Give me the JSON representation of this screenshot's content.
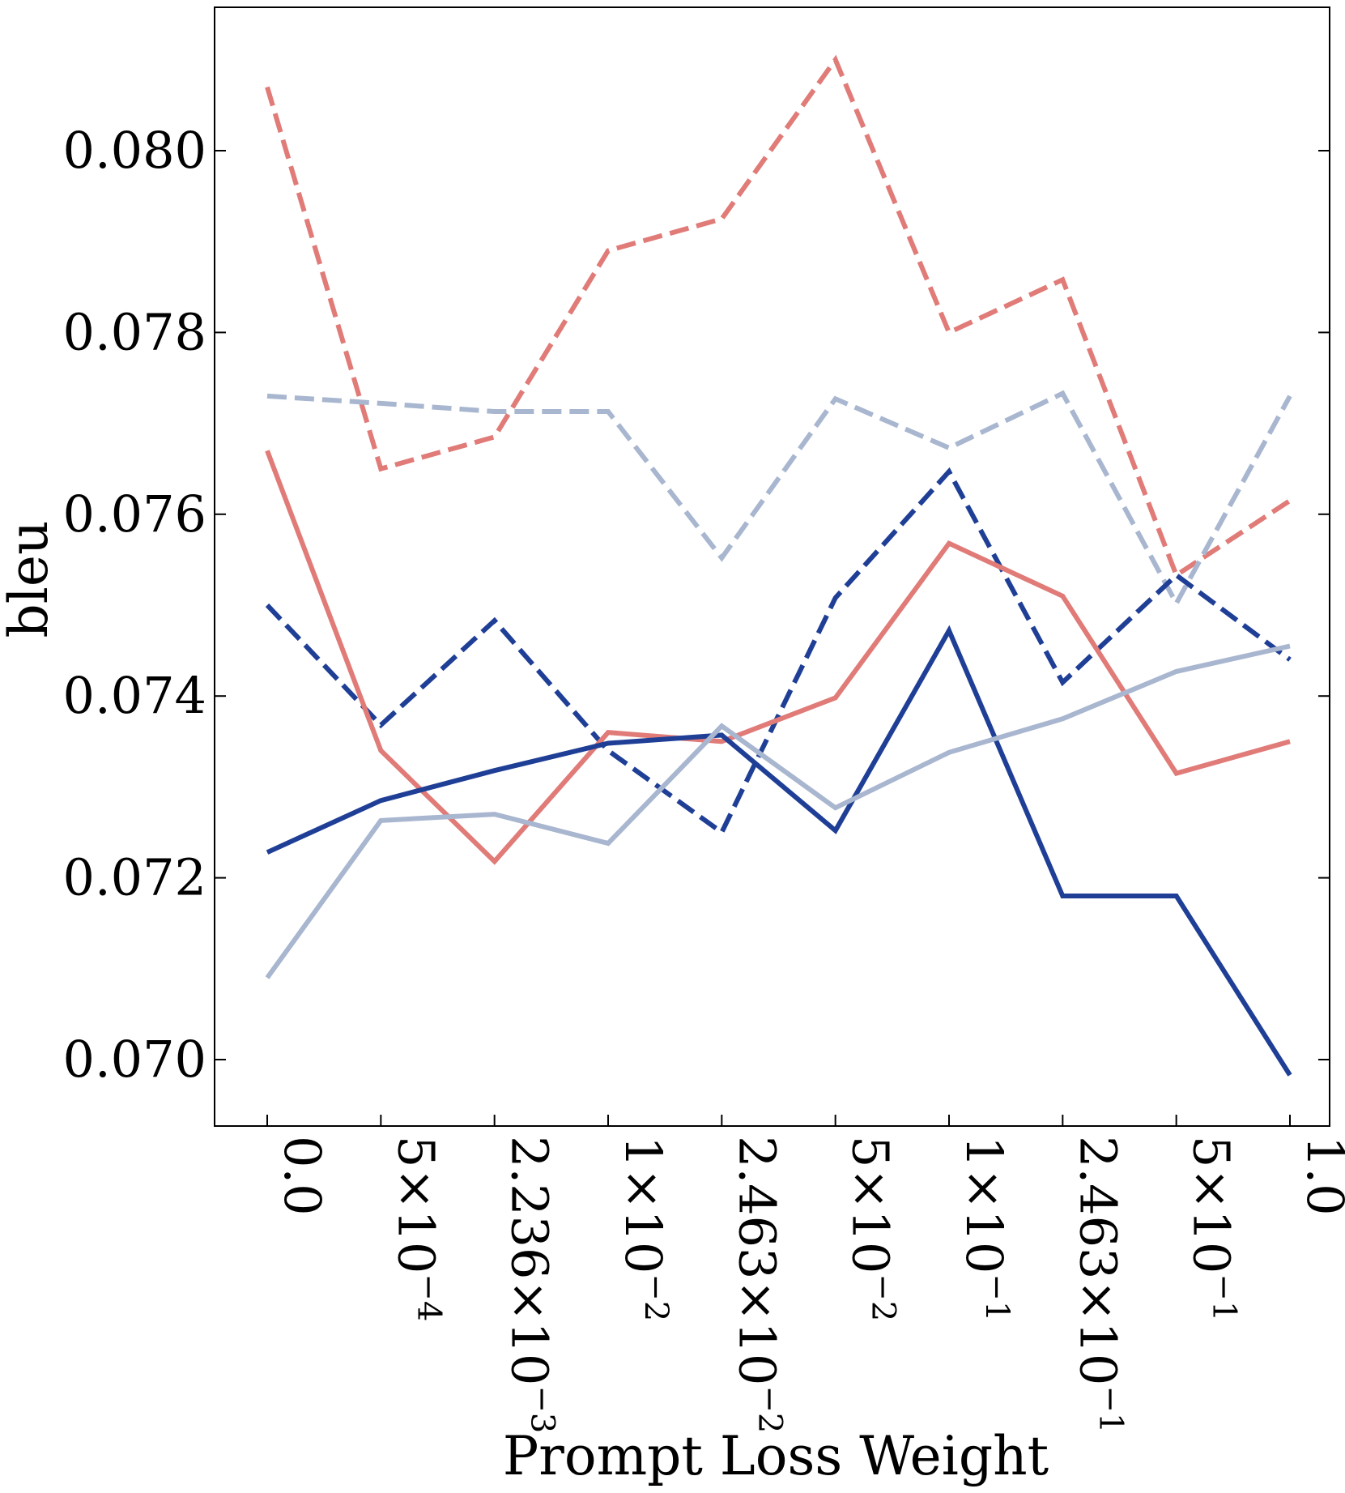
{
  "chart_data": {
    "type": "line",
    "title": "",
    "xlabel": "Prompt Loss Weight",
    "ylabel": "bleu",
    "ylim": [
      0.0693,
      0.0816
    ],
    "x": [
      0.0,
      0.0005,
      0.002236,
      0.01,
      0.02463,
      0.05,
      0.1,
      0.2463,
      0.5,
      1.0
    ],
    "x_tick_labels": [
      {
        "base": "0.0",
        "exp": ""
      },
      {
        "base": "5×10",
        "exp": "−4"
      },
      {
        "base": "2.236×10",
        "exp": "−3"
      },
      {
        "base": "1×10",
        "exp": "−2"
      },
      {
        "base": "2.463×10",
        "exp": "−2"
      },
      {
        "base": "5×10",
        "exp": "−2"
      },
      {
        "base": "1×10",
        "exp": "−1"
      },
      {
        "base": "2.463×10",
        "exp": "−1"
      },
      {
        "base": "5×10",
        "exp": "−1"
      },
      {
        "base": "1.0",
        "exp": ""
      }
    ],
    "y_ticks": [
      0.07,
      0.072,
      0.074,
      0.076,
      0.078,
      0.08
    ],
    "y_tick_labels": [
      "0.070",
      "0.072",
      "0.074",
      "0.076",
      "0.078",
      "0.080"
    ],
    "grid": false,
    "legend": "none",
    "series": [
      {
        "name": "red-dashed",
        "color": "#e07b78",
        "dash": true,
        "values": [
          0.0807,
          0.0765,
          0.07685,
          0.0789,
          0.07925,
          0.081,
          0.078,
          0.07858,
          0.07533,
          0.07615
        ]
      },
      {
        "name": "lightblue-dashed",
        "color": "#a8b6cf",
        "dash": true,
        "values": [
          0.0773,
          0.07722,
          0.07713,
          0.07713,
          0.07552,
          0.07727,
          0.07673,
          0.07733,
          0.07502,
          0.0773
        ]
      },
      {
        "name": "navy-dashed",
        "color": "#1f3f96",
        "dash": true,
        "values": [
          0.075,
          0.07368,
          0.07483,
          0.0734,
          0.0725,
          0.07508,
          0.07647,
          0.07415,
          0.07533,
          0.0744
        ]
      },
      {
        "name": "red-solid",
        "color": "#e07b78",
        "dash": false,
        "values": [
          0.0767,
          0.0734,
          0.07218,
          0.0736,
          0.0735,
          0.07398,
          0.07568,
          0.0751,
          0.07315,
          0.0735
        ]
      },
      {
        "name": "navy-solid",
        "color": "#1f3f96",
        "dash": false,
        "values": [
          0.07228,
          0.07285,
          0.07318,
          0.07348,
          0.07357,
          0.07252,
          0.07472,
          0.0718,
          0.0718,
          0.06983
        ]
      },
      {
        "name": "lightblue-solid",
        "color": "#a8b6cf",
        "dash": false,
        "values": [
          0.0709,
          0.07263,
          0.0727,
          0.07238,
          0.07367,
          0.07277,
          0.07338,
          0.07375,
          0.07427,
          0.07455
        ]
      }
    ]
  }
}
